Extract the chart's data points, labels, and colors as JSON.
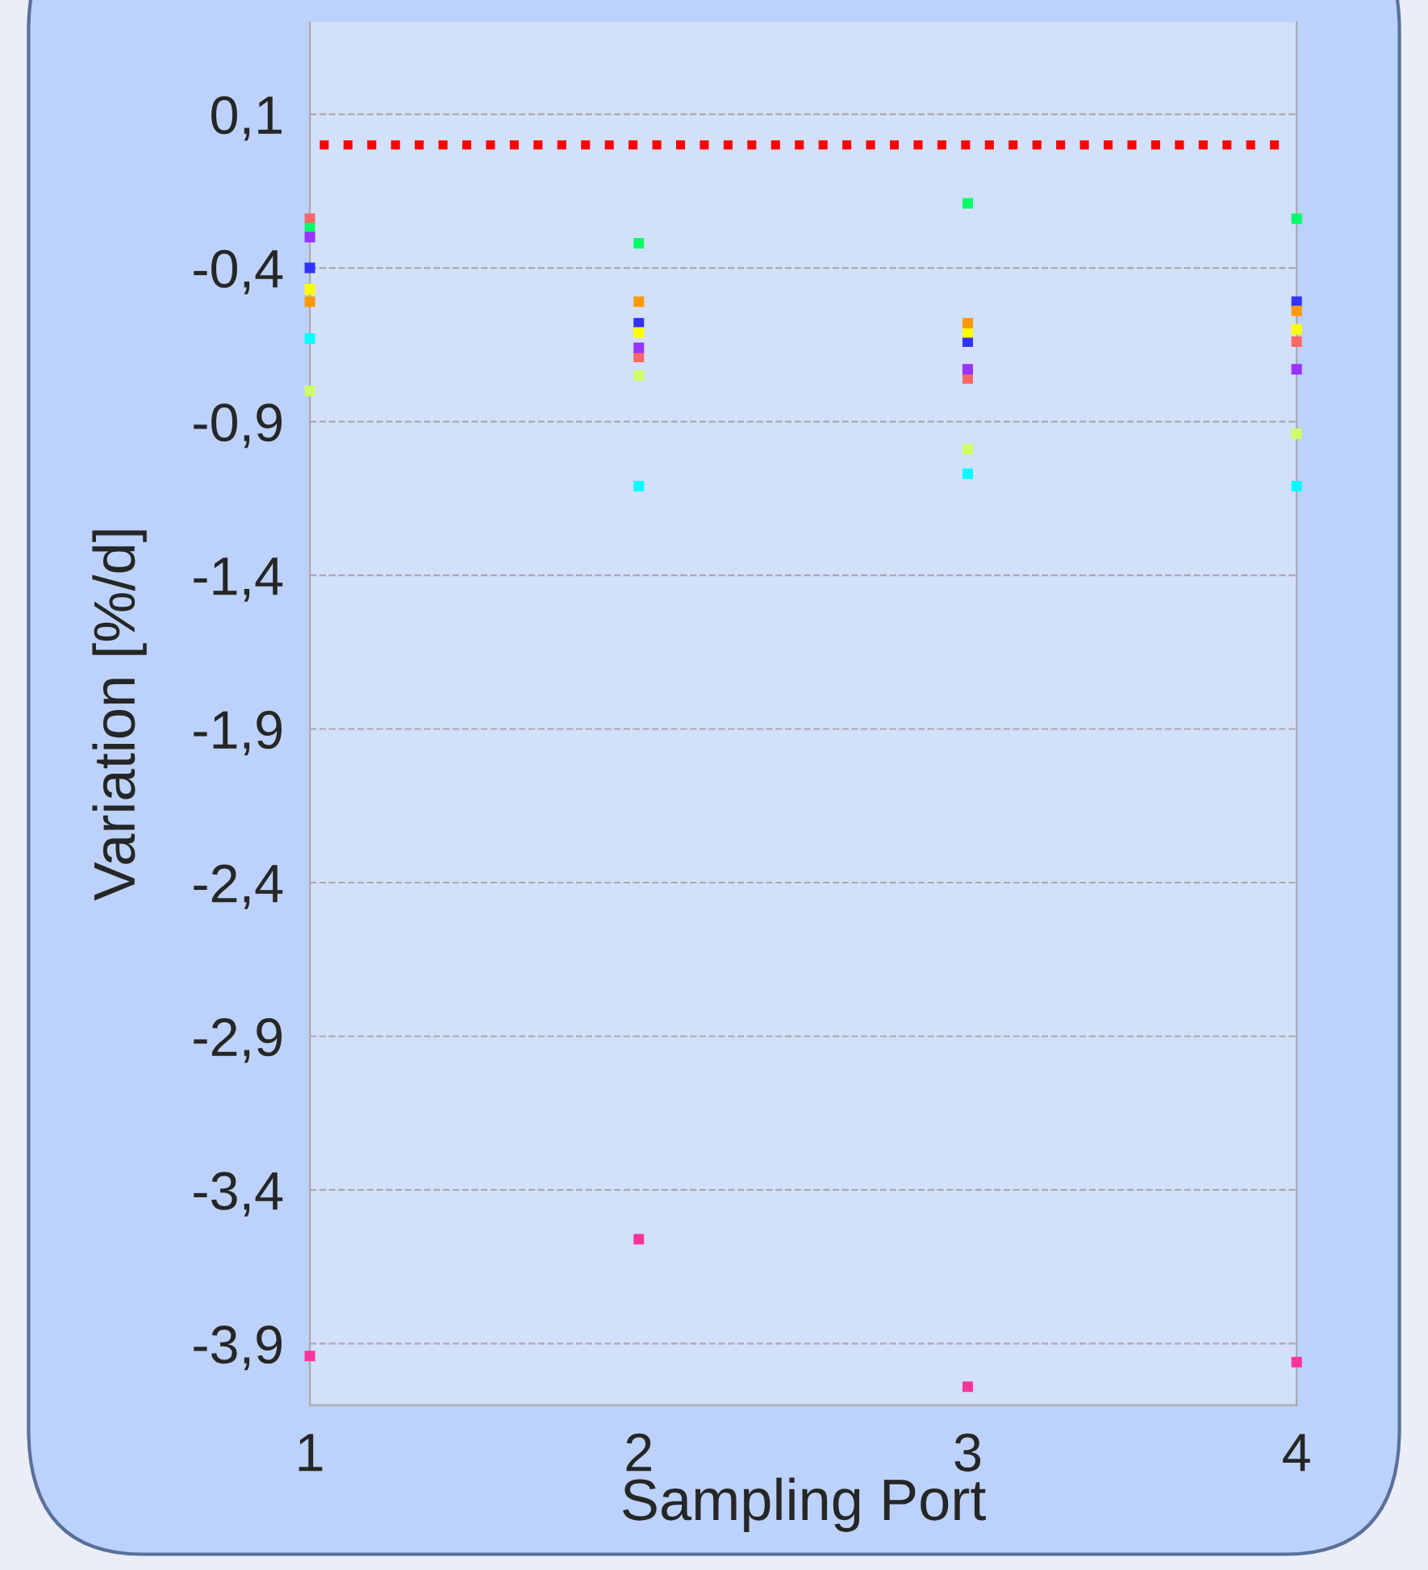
{
  "chart_data": {
    "type": "scatter",
    "xlabel": "Sampling Port",
    "ylabel": "Variation [%/d]",
    "x": [
      1,
      2,
      3,
      4
    ],
    "xlim": [
      1,
      4
    ],
    "xticks": [
      1,
      2,
      3,
      4
    ],
    "ylim": [
      -4.1,
      0.4
    ],
    "yticks": [
      {
        "value": 0.1,
        "label": "0,1"
      },
      {
        "value": -0.4,
        "label": "-0,4"
      },
      {
        "value": -0.9,
        "label": "-0,9"
      },
      {
        "value": -1.4,
        "label": "-1,4"
      },
      {
        "value": -1.9,
        "label": "-1,9"
      },
      {
        "value": -2.4,
        "label": "-2,4"
      },
      {
        "value": -2.9,
        "label": "-2,9"
      },
      {
        "value": -3.4,
        "label": "-3,4"
      },
      {
        "value": -3.9,
        "label": "-3,9"
      }
    ],
    "grid": "y",
    "marker": "square",
    "ref_lines": [
      {
        "axis": "y",
        "value": 0,
        "color": "#ff0000",
        "line_style": "dotted"
      }
    ],
    "series": [
      {
        "color": "#ff6666",
        "values": [
          -0.24,
          -0.69,
          -0.76,
          -0.64
        ]
      },
      {
        "color": "#00ff66",
        "values": [
          -0.27,
          -0.32,
          -0.19,
          -0.24
        ]
      },
      {
        "color": "#9933ff",
        "values": [
          -0.3,
          -0.66,
          -0.73,
          -0.73
        ]
      },
      {
        "color": "#3333ff",
        "values": [
          -0.4,
          -0.58,
          -0.64,
          -0.51
        ]
      },
      {
        "color": "#ffff00",
        "values": [
          -0.47,
          -0.61,
          -0.61,
          -0.6
        ]
      },
      {
        "color": "#ff9900",
        "values": [
          -0.51,
          -0.51,
          -0.58,
          -0.54
        ]
      },
      {
        "color": "#00ffff",
        "values": [
          -0.63,
          -1.11,
          -1.07,
          -1.11
        ]
      },
      {
        "color": "#ccff66",
        "values": [
          -0.8,
          -0.75,
          -0.99,
          -0.94
        ]
      },
      {
        "color": "#ff3399",
        "values": [
          -3.94,
          -3.56,
          -4.04,
          -3.96
        ]
      }
    ]
  }
}
